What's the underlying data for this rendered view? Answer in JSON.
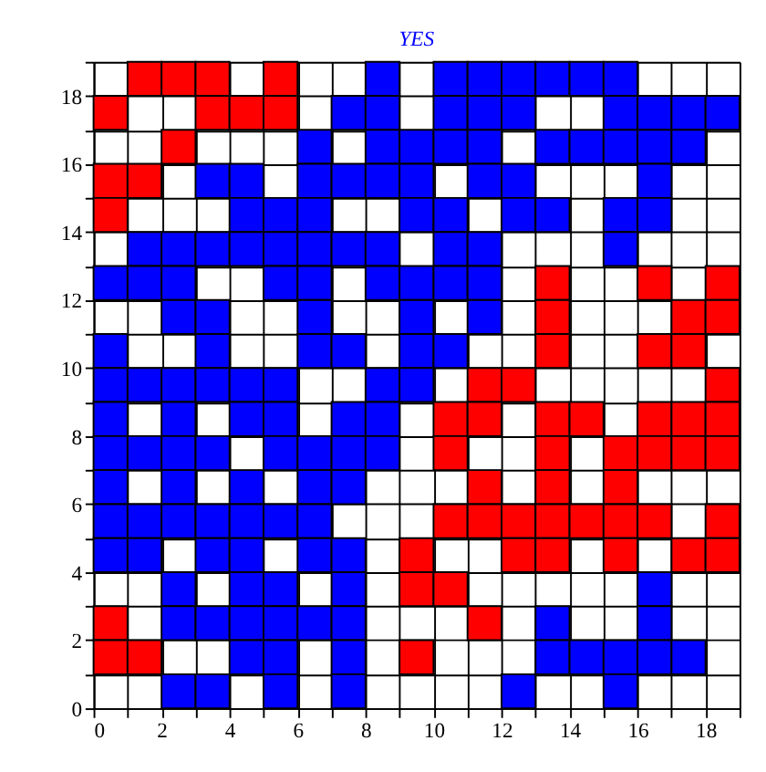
{
  "chart_data": {
    "type": "scatter",
    "title": "YES",
    "marker": "square",
    "grid": true,
    "xlim": [
      0,
      19
    ],
    "ylim": [
      0,
      19
    ],
    "xticks": [
      0,
      {
        "value": 1,
        "label": null
      },
      2,
      {
        "value": 3,
        "label": null
      },
      4,
      {
        "value": 5,
        "label": null
      },
      6,
      {
        "value": 7,
        "label": null
      },
      8,
      {
        "value": 9,
        "label": null
      },
      10,
      {
        "value": 11,
        "label": null
      },
      12,
      {
        "value": 13,
        "label": null
      },
      14,
      {
        "value": 15,
        "label": null
      },
      16,
      {
        "value": 17,
        "label": null
      },
      18,
      {
        "value": 19,
        "label": null
      }
    ],
    "yticks": [
      0,
      {
        "value": 1,
        "label": null
      },
      2,
      {
        "value": 3,
        "label": null
      },
      4,
      {
        "value": 5,
        "label": null
      },
      6,
      {
        "value": 7,
        "label": null
      },
      8,
      {
        "value": 9,
        "label": null
      },
      10,
      {
        "value": 11,
        "label": null
      },
      12,
      {
        "value": 13,
        "label": null
      },
      14,
      {
        "value": 15,
        "label": null
      },
      16,
      {
        "value": 17,
        "label": null
      },
      18,
      {
        "value": 19,
        "label": null
      }
    ],
    "series": [
      {
        "color": "#ff0000",
        "x": [
          1.5,
          2.5,
          3.5,
          5.5,
          0.5,
          3.5,
          4.5,
          5.5,
          2.5,
          0.5,
          1.5,
          0.5,
          13.5,
          16.5,
          18.5,
          13.5,
          17.5,
          18.5,
          13.5,
          16.5,
          17.5,
          11.5,
          12.5,
          18.5,
          10.5,
          11.5,
          13.5,
          14.5,
          16.5,
          17.5,
          18.5,
          10.5,
          13.5,
          15.5,
          16.5,
          17.5,
          18.5,
          11.5,
          13.5,
          15.5,
          10.5,
          11.5,
          12.5,
          13.5,
          14.5,
          15.5,
          16.5,
          18.5,
          9.5,
          12.5,
          13.5,
          15.5,
          17.5,
          18.5,
          9.5,
          10.5,
          0.5,
          11.5,
          0.5,
          1.5,
          9.5
        ],
        "values": [
          18.5,
          18.5,
          18.5,
          18.5,
          17.5,
          17.5,
          17.5,
          17.5,
          16.5,
          15.5,
          15.5,
          14.5,
          12.5,
          12.5,
          12.5,
          11.5,
          11.5,
          11.5,
          10.5,
          10.5,
          10.5,
          9.5,
          9.5,
          9.5,
          8.5,
          8.5,
          8.5,
          8.5,
          8.5,
          8.5,
          8.5,
          7.5,
          7.5,
          7.5,
          7.5,
          7.5,
          7.5,
          6.5,
          6.5,
          6.5,
          5.5,
          5.5,
          5.5,
          5.5,
          5.5,
          5.5,
          5.5,
          5.5,
          4.5,
          4.5,
          4.5,
          4.5,
          4.5,
          4.5,
          3.5,
          3.5,
          2.5,
          2.5,
          1.5,
          1.5,
          1.5
        ]
      },
      {
        "color": "#0000ff",
        "x": [
          8.5,
          10.5,
          11.5,
          12.5,
          13.5,
          14.5,
          15.5,
          7.5,
          8.5,
          10.5,
          11.5,
          12.5,
          15.5,
          16.5,
          17.5,
          18.5,
          6.5,
          8.5,
          9.5,
          10.5,
          11.5,
          13.5,
          14.5,
          15.5,
          16.5,
          17.5,
          3.5,
          4.5,
          6.5,
          7.5,
          8.5,
          9.5,
          11.5,
          12.5,
          16.5,
          4.5,
          5.5,
          6.5,
          9.5,
          10.5,
          12.5,
          13.5,
          15.5,
          16.5,
          1.5,
          2.5,
          3.5,
          4.5,
          5.5,
          6.5,
          7.5,
          8.5,
          10.5,
          11.5,
          15.5,
          0.5,
          1.5,
          2.5,
          5.5,
          6.5,
          8.5,
          9.5,
          10.5,
          11.5,
          2.5,
          3.5,
          6.5,
          9.5,
          11.5,
          0.5,
          3.5,
          6.5,
          7.5,
          9.5,
          10.5,
          0.5,
          1.5,
          2.5,
          3.5,
          4.5,
          5.5,
          8.5,
          9.5,
          0.5,
          2.5,
          4.5,
          5.5,
          7.5,
          8.5,
          0.5,
          1.5,
          2.5,
          3.5,
          5.5,
          6.5,
          7.5,
          8.5,
          0.5,
          2.5,
          4.5,
          6.5,
          7.5,
          0.5,
          1.5,
          2.5,
          3.5,
          4.5,
          5.5,
          6.5,
          0.5,
          1.5,
          3.5,
          4.5,
          6.5,
          7.5,
          2.5,
          4.5,
          5.5,
          7.5,
          16.5,
          2.5,
          3.5,
          4.5,
          5.5,
          6.5,
          7.5,
          13.5,
          16.5,
          4.5,
          5.5,
          7.5,
          13.5,
          14.5,
          15.5,
          16.5,
          17.5,
          2.5,
          3.5,
          5.5,
          7.5,
          12.5,
          15.5
        ],
        "values": [
          18.5,
          18.5,
          18.5,
          18.5,
          18.5,
          18.5,
          18.5,
          17.5,
          17.5,
          17.5,
          17.5,
          17.5,
          17.5,
          17.5,
          17.5,
          17.5,
          16.5,
          16.5,
          16.5,
          16.5,
          16.5,
          16.5,
          16.5,
          16.5,
          16.5,
          16.5,
          15.5,
          15.5,
          15.5,
          15.5,
          15.5,
          15.5,
          15.5,
          15.5,
          15.5,
          14.5,
          14.5,
          14.5,
          14.5,
          14.5,
          14.5,
          14.5,
          14.5,
          14.5,
          13.5,
          13.5,
          13.5,
          13.5,
          13.5,
          13.5,
          13.5,
          13.5,
          13.5,
          13.5,
          13.5,
          12.5,
          12.5,
          12.5,
          12.5,
          12.5,
          12.5,
          12.5,
          12.5,
          12.5,
          11.5,
          11.5,
          11.5,
          11.5,
          11.5,
          10.5,
          10.5,
          10.5,
          10.5,
          10.5,
          10.5,
          9.5,
          9.5,
          9.5,
          9.5,
          9.5,
          9.5,
          9.5,
          9.5,
          8.5,
          8.5,
          8.5,
          8.5,
          8.5,
          8.5,
          7.5,
          7.5,
          7.5,
          7.5,
          7.5,
          7.5,
          7.5,
          7.5,
          6.5,
          6.5,
          6.5,
          6.5,
          6.5,
          5.5,
          5.5,
          5.5,
          5.5,
          5.5,
          5.5,
          5.5,
          4.5,
          4.5,
          4.5,
          4.5,
          4.5,
          4.5,
          3.5,
          3.5,
          3.5,
          3.5,
          3.5,
          2.5,
          2.5,
          2.5,
          2.5,
          2.5,
          2.5,
          2.5,
          2.5,
          1.5,
          1.5,
          1.5,
          1.5,
          1.5,
          1.5,
          1.5,
          1.5,
          0.5,
          0.5,
          0.5,
          0.5,
          0.5,
          0.5
        ]
      }
    ]
  }
}
